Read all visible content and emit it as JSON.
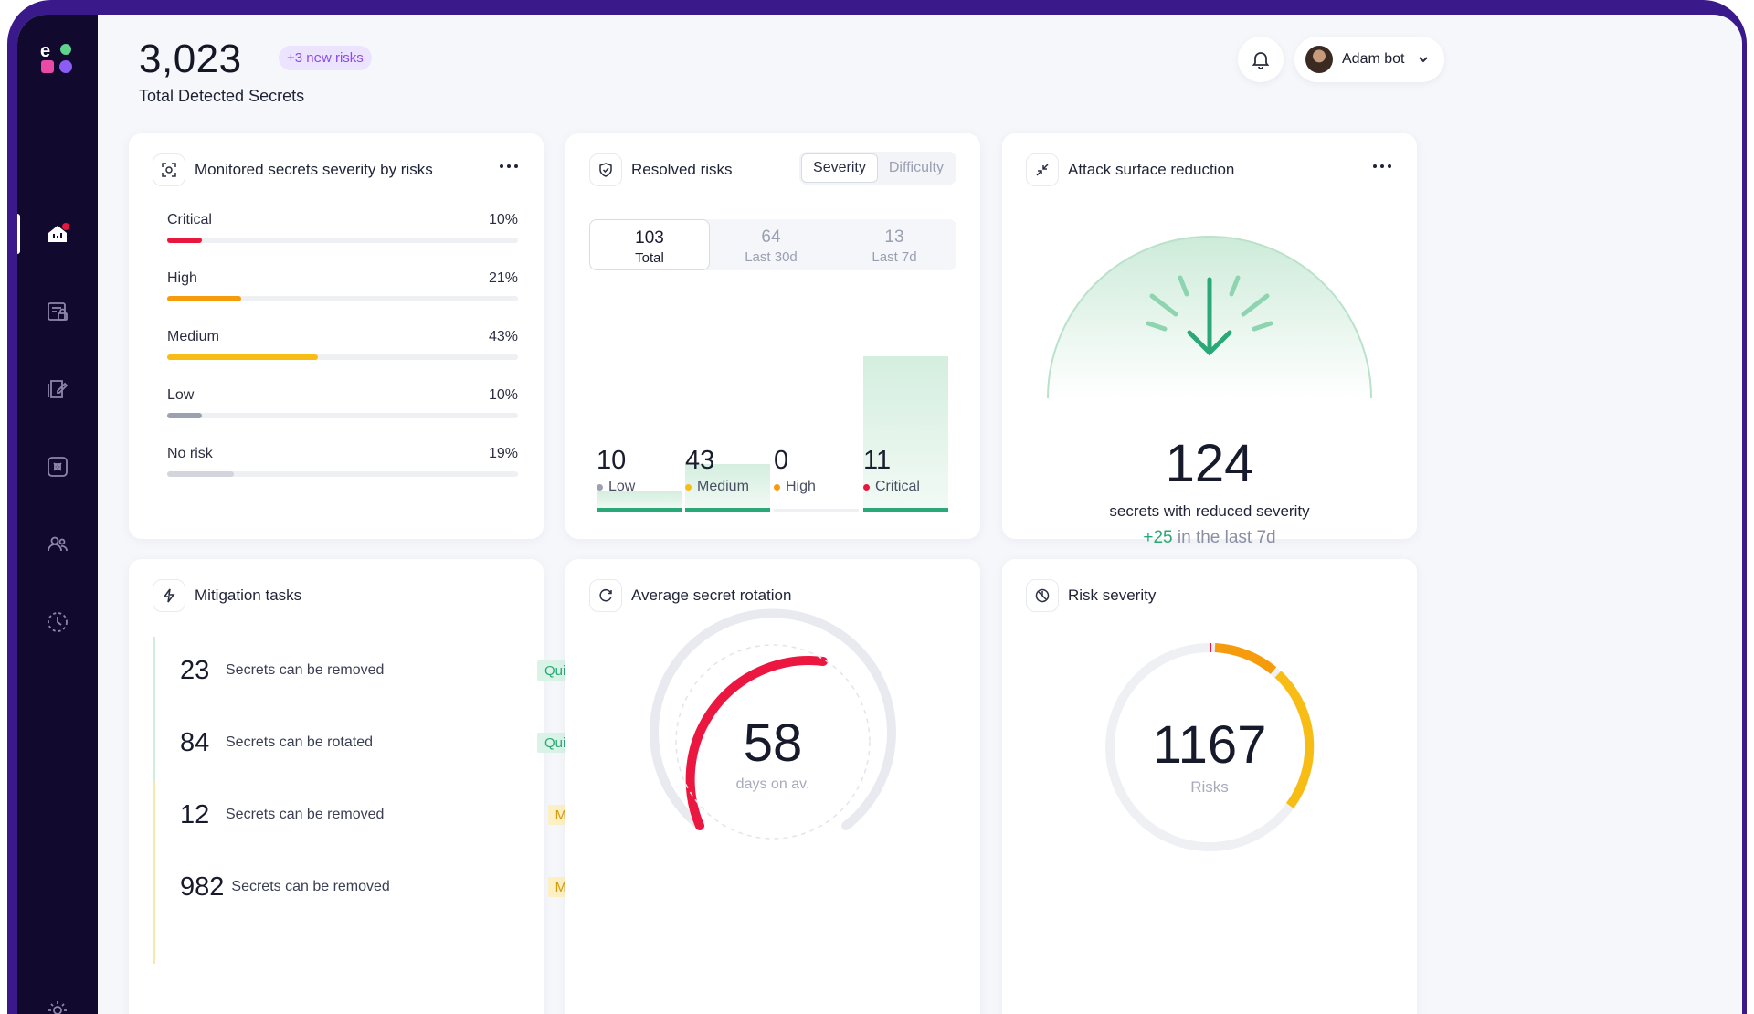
{
  "header": {
    "total_value": "3,023",
    "new_risks_badge": "+3 new risks",
    "total_label": "Total Detected Secrets",
    "user_name": "Adam bot"
  },
  "sidebar": {
    "items": [
      {
        "icon": "home-dashboard-icon",
        "active": true
      },
      {
        "icon": "secrets-document-icon"
      },
      {
        "icon": "edit-document-icon"
      },
      {
        "icon": "integration-box-icon"
      },
      {
        "icon": "users-icon"
      },
      {
        "icon": "clock-icon"
      },
      {
        "icon": "settings-gear-icon"
      }
    ]
  },
  "severity_card": {
    "title": "Monitored secrets severity by risks",
    "rows": [
      {
        "label": "Critical",
        "percent": "10%",
        "value": 10,
        "color": "#e8173e"
      },
      {
        "label": "High",
        "percent": "21%",
        "value": 21,
        "color": "#f59b0c"
      },
      {
        "label": "Medium",
        "percent": "43%",
        "value": 43,
        "color": "#f7bd14"
      },
      {
        "label": "Low",
        "percent": "10%",
        "value": 10,
        "color": "#9ca1b0"
      },
      {
        "label": "No risk",
        "percent": "19%",
        "value": 19,
        "color": "#d3d5dc"
      }
    ]
  },
  "resolved_card": {
    "title": "Resolved risks",
    "toggle": {
      "options": [
        "Severity",
        "Difficulty"
      ],
      "selected": "Severity"
    },
    "tabs": [
      {
        "value": "103",
        "label": "Total",
        "active": true
      },
      {
        "value": "64",
        "label": "Last 30d"
      },
      {
        "value": "13",
        "label": "Last 7d"
      }
    ],
    "bars": [
      {
        "value": "10",
        "label": "Low",
        "dot": "#9ca1b0"
      },
      {
        "value": "43",
        "label": "Medium",
        "dot": "#f7bd14"
      },
      {
        "value": "0",
        "label": "High",
        "dot": "#f59b0c"
      },
      {
        "value": "11",
        "label": "Critical",
        "dot": "#e8173e"
      }
    ]
  },
  "attack_card": {
    "title": "Attack surface reduction",
    "value": "124",
    "caption": "secrets with reduced severity",
    "delta": "+25",
    "delta_suffix": " in the last 7d",
    "accent": "#2aa877"
  },
  "mitigation_card": {
    "title": "Mitigation tasks",
    "tasks": [
      {
        "count": "23",
        "text": "Secrets can be removed",
        "tag": "Quick win",
        "type": "quick"
      },
      {
        "count": "84",
        "text": "Secrets can be rotated",
        "tag": "Quick win",
        "type": "quick"
      },
      {
        "count": "12",
        "text": "Secrets can be removed",
        "tag": "Medium",
        "type": "medium"
      },
      {
        "count": "982",
        "text": "Secrets can be removed",
        "tag": "Medium",
        "type": "medium"
      }
    ]
  },
  "rotation_card": {
    "title": "Average secret rotation",
    "value": "58",
    "unit": "days on av."
  },
  "risk_card": {
    "title": "Risk severity",
    "value": "1167",
    "unit": "Risks"
  }
}
